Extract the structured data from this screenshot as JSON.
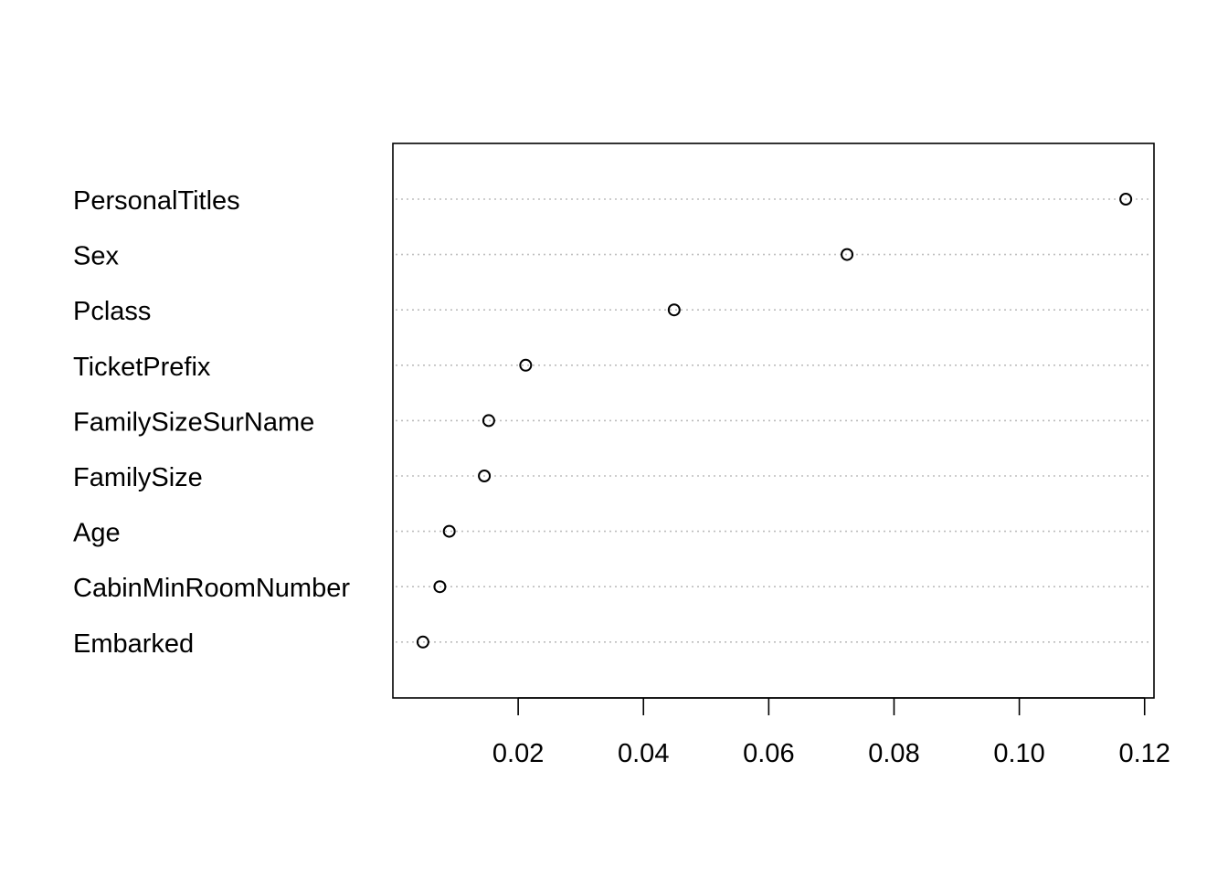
{
  "chart_data": {
    "type": "scatter",
    "subtype": "dotchart",
    "title": "",
    "xlabel": "",
    "ylabel": "",
    "categories": [
      "PersonalTitles",
      "Sex",
      "Pclass",
      "TicketPrefix",
      "FamilySizeSurName",
      "FamilySize",
      "Age",
      "CabinMinRoomNumber",
      "Embarked"
    ],
    "values": [
      0.117,
      0.0725,
      0.0449,
      0.0212,
      0.0153,
      0.0146,
      0.009,
      0.0075,
      0.0048
    ],
    "xlim": [
      0.0,
      0.1215
    ],
    "x_ticks": [
      0.02,
      0.04,
      0.06,
      0.08,
      0.1,
      0.12
    ],
    "x_tick_labels": [
      "0.02",
      "0.04",
      "0.06",
      "0.08",
      "0.10",
      "0.12"
    ],
    "grid": "horizontal-dotted",
    "legend": "none",
    "colors": {
      "points": "#000000",
      "grid": "#bdbdbd",
      "frame": "#000000"
    }
  }
}
